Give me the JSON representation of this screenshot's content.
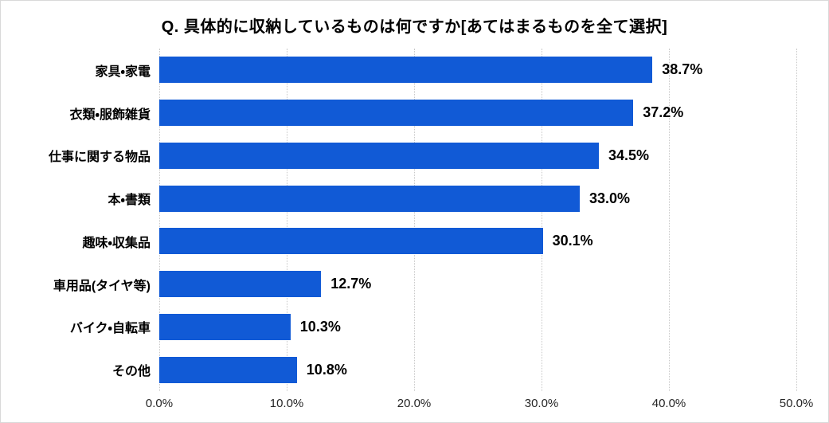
{
  "chart_data": {
    "type": "bar",
    "orientation": "horizontal",
    "title": "Q. 具体的に収納しているものは何ですか[あてはまるものを全て選択]",
    "categories": [
      "家具・家電",
      "衣類・服飾雑貨",
      "仕事に関する物品",
      "本・書類",
      "趣味・収集品",
      "車用品(タイヤ等)",
      "バイク・自転車",
      "その他"
    ],
    "values": [
      38.7,
      37.2,
      34.5,
      33.0,
      30.1,
      12.7,
      10.3,
      10.8
    ],
    "value_labels": [
      "38.7%",
      "37.2%",
      "34.5%",
      "33.0%",
      "30.1%",
      "12.7%",
      "10.3%",
      "10.8%"
    ],
    "x_ticks": [
      "0.0%",
      "10.0%",
      "20.0%",
      "30.0%",
      "40.0%",
      "50.0%"
    ],
    "xlim": [
      0,
      50
    ],
    "grid": true,
    "legend": false,
    "bar_color": "#115ad6",
    "gridline_color": "#c8c8c8"
  }
}
